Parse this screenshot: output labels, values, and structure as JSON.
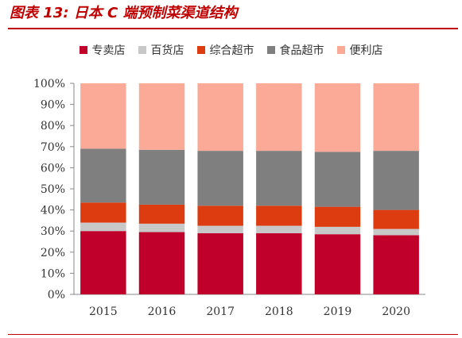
{
  "title": "图表 13:  日本 C 端预制菜渠道结构",
  "colors": {
    "title": "#c00000",
    "rule": "#c00000",
    "axis": "#888888",
    "series": [
      "#c0002a",
      "#c8c8c8",
      "#dd3b10",
      "#7f7f7f",
      "#fbaa98"
    ]
  },
  "chart_data": {
    "type": "bar",
    "stacked": true,
    "normalized": true,
    "categories": [
      "2015",
      "2016",
      "2017",
      "2018",
      "2019",
      "2020"
    ],
    "series": [
      {
        "name": "专卖店",
        "values": [
          30,
          29.5,
          29,
          29,
          28.5,
          28
        ]
      },
      {
        "name": "百货店",
        "values": [
          4,
          4,
          3.5,
          3.5,
          3.5,
          3
        ]
      },
      {
        "name": "综合超市",
        "values": [
          9.5,
          9,
          9.5,
          9.5,
          9.5,
          9
        ]
      },
      {
        "name": "食品超市",
        "values": [
          25.5,
          26,
          26,
          26,
          26,
          28
        ]
      },
      {
        "name": "便利店",
        "values": [
          31,
          31.5,
          32,
          32,
          32.5,
          32
        ]
      }
    ],
    "ylim": [
      0,
      100
    ],
    "yticks": [
      "0%",
      "10%",
      "20%",
      "30%",
      "40%",
      "50%",
      "60%",
      "70%",
      "80%",
      "90%",
      "100%"
    ],
    "legend_position": "top",
    "grid": false,
    "xlabel": "",
    "ylabel": ""
  }
}
